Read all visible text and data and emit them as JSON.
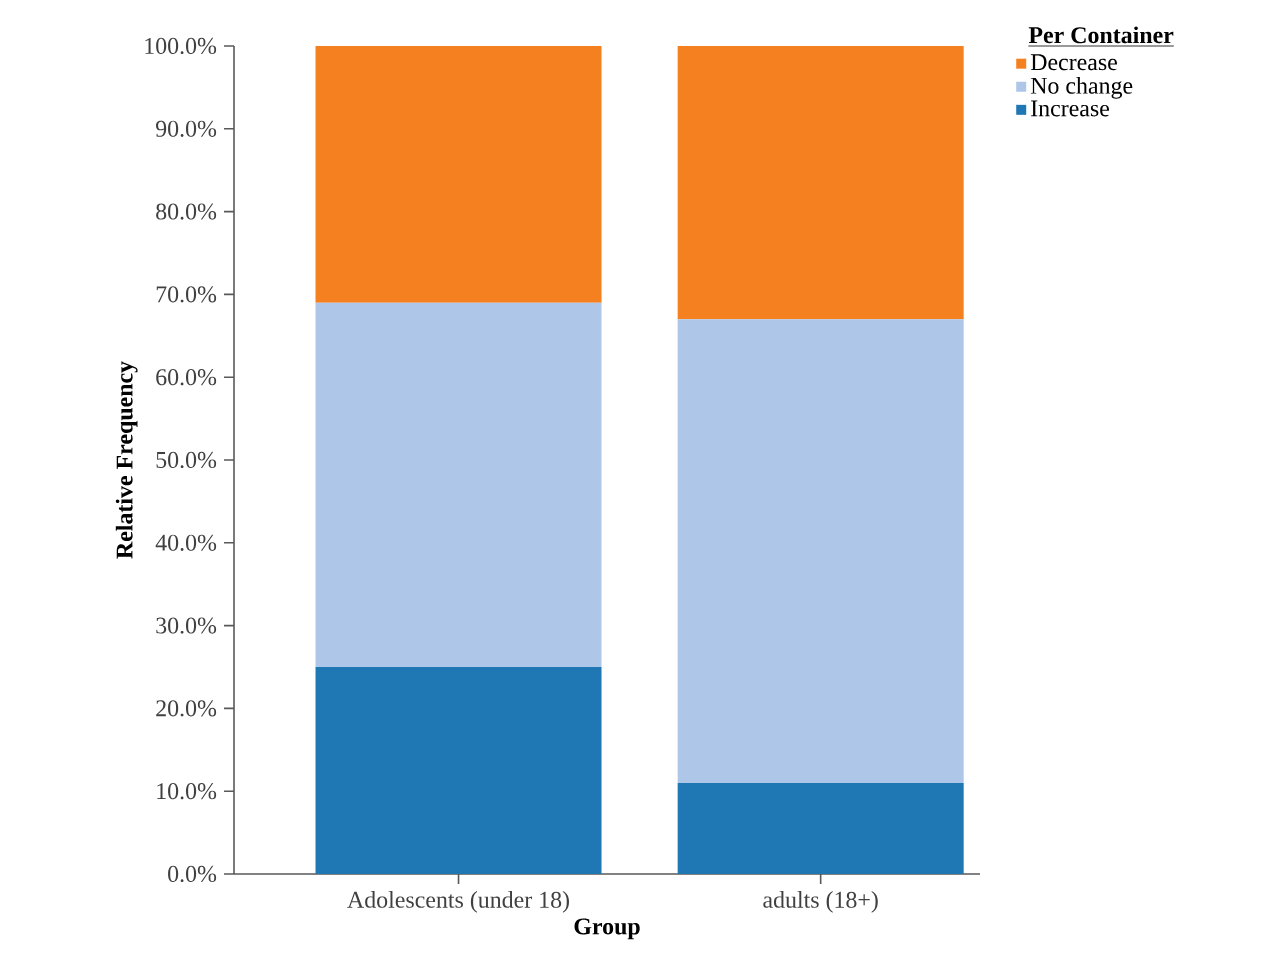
{
  "chart_data": {
    "type": "bar",
    "stacked": true,
    "xlabel": "Group",
    "ylabel": "Relative Frequency",
    "legend_title": "Per Container",
    "legend": "top right",
    "categories": [
      "Adolescents (under 18)",
      "adults (18+)"
    ],
    "series": [
      {
        "name": "Increase",
        "color": "#1f77b4",
        "values": [
          25,
          11
        ]
      },
      {
        "name": "No change",
        "color": "#aec7e8",
        "values": [
          44,
          56
        ]
      },
      {
        "name": "Decrease",
        "color": "#f58020",
        "values": [
          31,
          33
        ]
      }
    ],
    "ylim": [
      0,
      100
    ],
    "yticks": [
      {
        "value": 0,
        "label": "0.0%"
      },
      {
        "value": 10,
        "label": "10.0%"
      },
      {
        "value": 20,
        "label": "20.0%"
      },
      {
        "value": 30,
        "label": "30.0%"
      },
      {
        "value": 40,
        "label": "40.0%"
      },
      {
        "value": 50,
        "label": "50.0%"
      },
      {
        "value": 60,
        "label": "60.0%"
      },
      {
        "value": 70,
        "label": "70.0%"
      },
      {
        "value": 80,
        "label": "80.0%"
      },
      {
        "value": 90,
        "label": "90.0%"
      },
      {
        "value": 100,
        "label": "100.0%"
      }
    ]
  }
}
